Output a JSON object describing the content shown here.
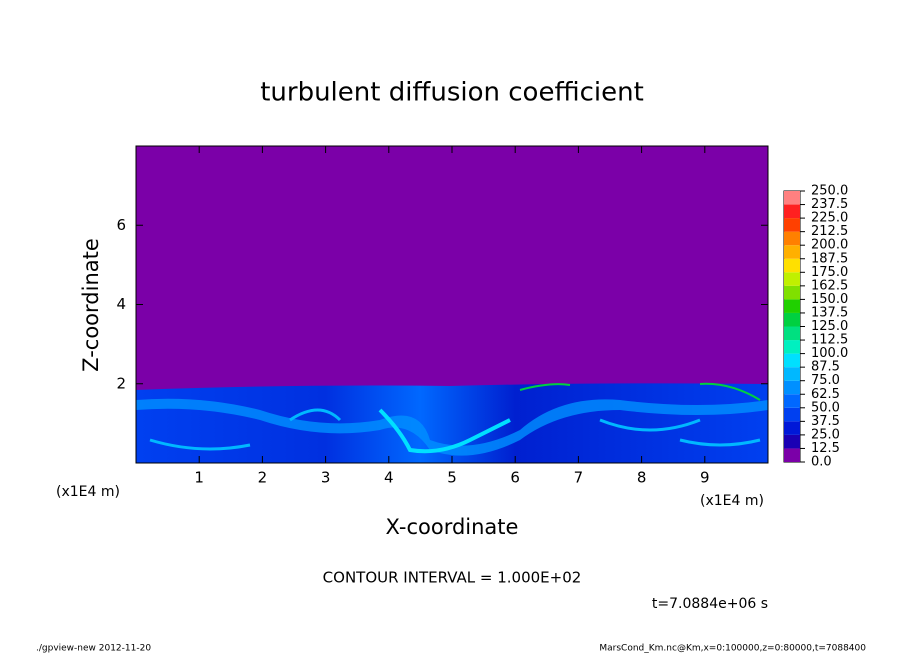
{
  "chart_data": {
    "type": "contour",
    "title": "turbulent diffusion coefficient",
    "x_label": "X-coordinate",
    "y_label": "Z-coordinate",
    "x_unit": "(x1E4 m)",
    "xlim": [
      0,
      10
    ],
    "ylim": [
      0,
      8
    ],
    "xticks": [
      1,
      2,
      3,
      4,
      5,
      6,
      7,
      8,
      9
    ],
    "yticks": [
      2,
      4,
      6
    ],
    "colorbar": {
      "levels": [
        {
          "value": 0,
          "label": "0.0"
        },
        {
          "value": 12.5,
          "label": "12.5"
        },
        {
          "value": 25,
          "label": "25.0"
        },
        {
          "value": 37.5,
          "label": "37.5"
        },
        {
          "value": 50,
          "label": "50.0"
        },
        {
          "value": 62.5,
          "label": "62.5"
        },
        {
          "value": 75,
          "label": "75.0"
        },
        {
          "value": 87.5,
          "label": "87.5"
        },
        {
          "value": 100,
          "label": "100.0"
        },
        {
          "value": 112.5,
          "label": "112.5"
        },
        {
          "value": 125,
          "label": "125.0"
        },
        {
          "value": 137.5,
          "label": "137.5"
        },
        {
          "value": 150,
          "label": "150.0"
        },
        {
          "value": 162.5,
          "label": "162.5"
        },
        {
          "value": 175,
          "label": "175.0"
        },
        {
          "value": 187.5,
          "label": "187.5"
        },
        {
          "value": 200,
          "label": "200.0"
        },
        {
          "value": 212.5,
          "label": "212.5"
        },
        {
          "value": 225,
          "label": "225.0"
        },
        {
          "value": 237.5,
          "label": "237.5"
        },
        {
          "value": 250,
          "label": "250.0"
        }
      ],
      "colors": [
        "#7b00a8",
        "#1a00b4",
        "#0018d8",
        "#0040f0",
        "#0068ff",
        "#0090ff",
        "#00b8ff",
        "#00e0ff",
        "#00f0c0",
        "#00e080",
        "#00d040",
        "#20d000",
        "#80e000",
        "#c0f000",
        "#ffe000",
        "#ffb000",
        "#ff8000",
        "#ff4000",
        "#ff2020",
        "#ff8080"
      ]
    },
    "contour_interval": "CONTOUR INTERVAL = 1.000E+02",
    "time": "t=7.0884e+06 s",
    "footer_left": "./gpview-new  2012-11-20",
    "footer_right": "MarsCond_Km.nc@Km,x=0:100000,z=0:80000,t=7088400"
  }
}
